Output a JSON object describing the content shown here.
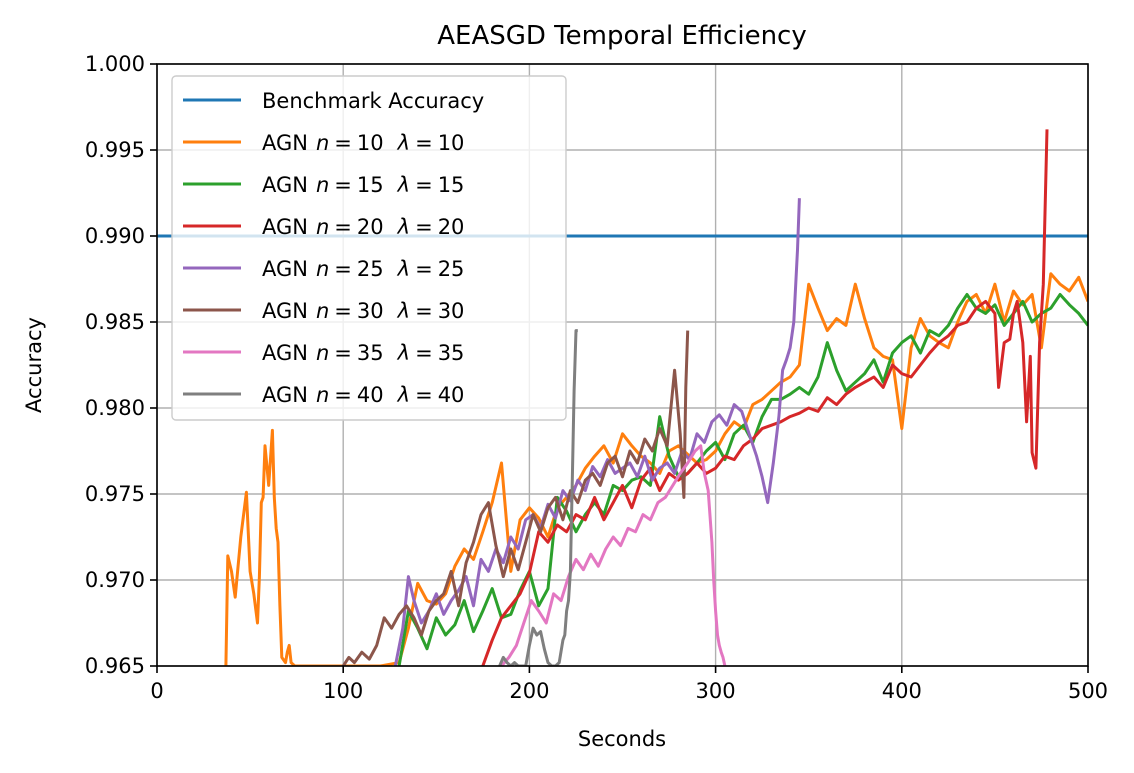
{
  "chart_data": {
    "type": "line",
    "title": "AEASGD Temporal Efficiency",
    "xlabel": "Seconds",
    "ylabel": "Accuracy",
    "xlim": [
      0,
      500
    ],
    "ylim": [
      0.965,
      1.0
    ],
    "xticks": [
      0,
      100,
      200,
      300,
      400,
      500
    ],
    "yticks": [
      0.965,
      0.97,
      0.975,
      0.98,
      0.985,
      0.99,
      0.995,
      1.0
    ],
    "ytick_labels": [
      "0.965",
      "0.970",
      "0.975",
      "0.980",
      "0.985",
      "0.990",
      "0.995",
      "1.000"
    ],
    "grid": true,
    "legend_position": "top-left",
    "series": [
      {
        "name": "Benchmark Accuracy",
        "legend": {
          "prefix": "Benchmark Accuracy",
          "n": "",
          "lambda": ""
        },
        "color": "#1f77b4",
        "x": [
          0,
          500
        ],
        "y": [
          0.99,
          0.99
        ]
      },
      {
        "name": "AGN n=10 λ=10",
        "legend": {
          "prefix": "AGN",
          "n": "10",
          "lambda": "10"
        },
        "color": "#ff7f0e",
        "x": [
          37,
          38,
          40,
          42,
          45,
          48,
          50,
          52,
          54,
          55,
          56,
          57,
          58,
          60,
          62,
          63,
          64,
          65,
          66,
          67,
          69,
          70,
          71,
          72,
          74,
          76,
          78,
          80,
          100,
          120,
          130,
          135,
          140,
          145,
          150,
          155,
          160,
          165,
          170,
          175,
          180,
          185,
          190,
          195,
          200,
          205,
          210,
          215,
          220,
          225,
          230,
          235,
          240,
          245,
          250,
          255,
          260,
          265,
          270,
          275,
          280,
          285,
          290,
          295,
          300,
          305,
          310,
          315,
          320,
          325,
          330,
          335,
          340,
          345,
          350,
          355,
          360,
          365,
          370,
          375,
          380,
          385,
          390,
          395,
          400,
          405,
          410,
          415,
          420,
          425,
          430,
          435,
          440,
          445,
          450,
          455,
          460,
          465,
          470,
          475,
          480,
          485,
          490,
          495,
          500
        ],
        "y": [
          0.965,
          0.9714,
          0.9705,
          0.969,
          0.9725,
          0.9751,
          0.9705,
          0.9692,
          0.9675,
          0.9702,
          0.9745,
          0.9748,
          0.9778,
          0.9755,
          0.9787,
          0.9748,
          0.973,
          0.9722,
          0.9685,
          0.9655,
          0.9652,
          0.9658,
          0.9662,
          0.9652,
          0.965,
          0.965,
          0.965,
          0.965,
          0.965,
          0.965,
          0.9652,
          0.9672,
          0.9698,
          0.9688,
          0.9686,
          0.9692,
          0.9708,
          0.9718,
          0.9712,
          0.9728,
          0.9745,
          0.9768,
          0.9705,
          0.9735,
          0.9742,
          0.9736,
          0.9725,
          0.9742,
          0.9748,
          0.9755,
          0.9765,
          0.9772,
          0.9778,
          0.9768,
          0.9785,
          0.9778,
          0.9772,
          0.9768,
          0.9762,
          0.9775,
          0.9778,
          0.9773,
          0.9768,
          0.977,
          0.9775,
          0.9785,
          0.9792,
          0.9788,
          0.9802,
          0.9805,
          0.981,
          0.9815,
          0.9818,
          0.9825,
          0.9872,
          0.9858,
          0.9845,
          0.9852,
          0.9848,
          0.9872,
          0.9852,
          0.9835,
          0.983,
          0.9828,
          0.9788,
          0.9835,
          0.9852,
          0.9842,
          0.9838,
          0.9835,
          0.985,
          0.9862,
          0.9866,
          0.9855,
          0.9872,
          0.985,
          0.9868,
          0.986,
          0.9866,
          0.9835,
          0.9878,
          0.9872,
          0.9868,
          0.9876,
          0.9862
        ]
      },
      {
        "name": "AGN n=15 λ=15",
        "legend": {
          "prefix": "AGN",
          "n": "15",
          "lambda": "15"
        },
        "color": "#2ca02c",
        "x": [
          130,
          135,
          140,
          145,
          150,
          155,
          160,
          165,
          170,
          175,
          180,
          185,
          190,
          195,
          200,
          205,
          210,
          215,
          220,
          225,
          230,
          235,
          240,
          245,
          250,
          255,
          260,
          265,
          270,
          275,
          280,
          285,
          290,
          295,
          300,
          305,
          310,
          315,
          320,
          325,
          330,
          335,
          340,
          345,
          350,
          355,
          360,
          365,
          370,
          375,
          380,
          385,
          390,
          395,
          400,
          405,
          410,
          415,
          420,
          425,
          430,
          435,
          440,
          445,
          450,
          455,
          460,
          465,
          470,
          475,
          480,
          485,
          490,
          495,
          500
        ],
        "y": [
          0.965,
          0.9682,
          0.9672,
          0.966,
          0.9678,
          0.9668,
          0.9674,
          0.9688,
          0.967,
          0.9682,
          0.9695,
          0.9678,
          0.968,
          0.9694,
          0.9705,
          0.9685,
          0.9695,
          0.9748,
          0.974,
          0.9728,
          0.9738,
          0.9745,
          0.9738,
          0.9755,
          0.9752,
          0.9758,
          0.976,
          0.9755,
          0.9795,
          0.9772,
          0.976,
          0.9762,
          0.9768,
          0.9775,
          0.978,
          0.977,
          0.9785,
          0.979,
          0.978,
          0.9795,
          0.9805,
          0.9805,
          0.9808,
          0.9812,
          0.9808,
          0.9818,
          0.9838,
          0.9822,
          0.981,
          0.9815,
          0.982,
          0.9828,
          0.9815,
          0.9832,
          0.9838,
          0.9842,
          0.9832,
          0.9845,
          0.9842,
          0.9848,
          0.9858,
          0.9866,
          0.9858,
          0.9855,
          0.986,
          0.9848,
          0.9855,
          0.9862,
          0.985,
          0.9855,
          0.9858,
          0.9866,
          0.986,
          0.9855,
          0.9848
        ]
      },
      {
        "name": "AGN n=20 λ=20",
        "legend": {
          "prefix": "AGN",
          "n": "20",
          "lambda": "20"
        },
        "color": "#d62728",
        "x": [
          175,
          180,
          185,
          190,
          195,
          200,
          205,
          210,
          215,
          220,
          225,
          230,
          235,
          240,
          245,
          250,
          255,
          260,
          265,
          270,
          275,
          280,
          285,
          290,
          295,
          300,
          305,
          310,
          315,
          320,
          325,
          330,
          335,
          340,
          345,
          350,
          355,
          360,
          365,
          370,
          375,
          380,
          385,
          390,
          395,
          400,
          405,
          410,
          415,
          420,
          425,
          430,
          435,
          440,
          445,
          450,
          452,
          455,
          458,
          460,
          462,
          465,
          467,
          469,
          470,
          472,
          474,
          476,
          478
        ],
        "y": [
          0.965,
          0.9665,
          0.9678,
          0.9685,
          0.9692,
          0.9704,
          0.9728,
          0.9722,
          0.9732,
          0.9728,
          0.9738,
          0.9735,
          0.9748,
          0.9735,
          0.9745,
          0.9755,
          0.9742,
          0.9758,
          0.9765,
          0.9752,
          0.9762,
          0.9758,
          0.9762,
          0.9768,
          0.9762,
          0.9765,
          0.9772,
          0.977,
          0.9778,
          0.9782,
          0.9788,
          0.979,
          0.9792,
          0.9795,
          0.9797,
          0.98,
          0.9798,
          0.9806,
          0.9802,
          0.9808,
          0.9812,
          0.9815,
          0.9818,
          0.9812,
          0.9825,
          0.982,
          0.9818,
          0.9825,
          0.9832,
          0.9838,
          0.9842,
          0.9848,
          0.985,
          0.9858,
          0.9862,
          0.9855,
          0.9812,
          0.9838,
          0.984,
          0.9855,
          0.9862,
          0.9838,
          0.9792,
          0.983,
          0.9774,
          0.9765,
          0.9838,
          0.9872,
          0.9962
        ]
      },
      {
        "name": "AGN n=25 λ=25",
        "legend": {
          "prefix": "AGN",
          "n": "25",
          "lambda": "25"
        },
        "color": "#9467bd",
        "x": [
          128,
          132,
          135,
          138,
          142,
          146,
          150,
          154,
          158,
          162,
          166,
          170,
          174,
          178,
          182,
          186,
          190,
          194,
          198,
          202,
          206,
          210,
          214,
          218,
          222,
          226,
          230,
          234,
          238,
          242,
          246,
          250,
          254,
          258,
          262,
          266,
          270,
          274,
          278,
          282,
          286,
          290,
          294,
          298,
          302,
          306,
          310,
          314,
          318,
          322,
          325,
          328,
          331,
          334,
          336,
          338,
          340,
          342,
          344,
          345
        ],
        "y": [
          0.965,
          0.9672,
          0.9702,
          0.9688,
          0.9675,
          0.9682,
          0.9692,
          0.968,
          0.9688,
          0.9694,
          0.9702,
          0.9685,
          0.9712,
          0.9705,
          0.9718,
          0.971,
          0.9725,
          0.9718,
          0.9735,
          0.9738,
          0.973,
          0.9744,
          0.9736,
          0.9752,
          0.9746,
          0.9758,
          0.9752,
          0.9766,
          0.976,
          0.977,
          0.9762,
          0.9765,
          0.9768,
          0.976,
          0.9772,
          0.9758,
          0.9765,
          0.9768,
          0.9762,
          0.9775,
          0.977,
          0.9785,
          0.978,
          0.9792,
          0.9796,
          0.979,
          0.9802,
          0.9798,
          0.9785,
          0.9772,
          0.976,
          0.9745,
          0.9768,
          0.9795,
          0.9822,
          0.9828,
          0.9835,
          0.985,
          0.9892,
          0.9922
        ]
      },
      {
        "name": "AGN n=30 λ=30",
        "legend": {
          "prefix": "AGN",
          "n": "30",
          "lambda": "30"
        },
        "color": "#8c564b",
        "x": [
          100,
          103,
          106,
          110,
          114,
          118,
          122,
          126,
          130,
          134,
          138,
          142,
          146,
          150,
          154,
          158,
          162,
          166,
          170,
          174,
          178,
          182,
          186,
          190,
          194,
          198,
          202,
          206,
          210,
          214,
          218,
          222,
          226,
          230,
          234,
          238,
          242,
          246,
          250,
          254,
          258,
          262,
          266,
          270,
          274,
          278,
          281,
          283,
          284,
          285
        ],
        "y": [
          0.965,
          0.9655,
          0.9652,
          0.9658,
          0.9654,
          0.9662,
          0.9678,
          0.9672,
          0.968,
          0.9685,
          0.9678,
          0.9668,
          0.9682,
          0.9688,
          0.9692,
          0.9705,
          0.9685,
          0.971,
          0.9722,
          0.9738,
          0.9745,
          0.972,
          0.9702,
          0.9718,
          0.9706,
          0.9722,
          0.9738,
          0.9728,
          0.9742,
          0.9748,
          0.9735,
          0.9752,
          0.9745,
          0.9758,
          0.9762,
          0.9755,
          0.9768,
          0.9772,
          0.976,
          0.9775,
          0.9768,
          0.9782,
          0.9775,
          0.9788,
          0.9778,
          0.9822,
          0.9785,
          0.9748,
          0.9812,
          0.9845
        ]
      },
      {
        "name": "AGN n=35 λ=35",
        "legend": {
          "prefix": "AGN",
          "n": "35",
          "lambda": "35"
        },
        "color": "#e377c2",
        "x": [
          185,
          189,
          193,
          197,
          201,
          205,
          209,
          213,
          217,
          221,
          225,
          229,
          233,
          237,
          241,
          245,
          249,
          253,
          257,
          261,
          265,
          269,
          273,
          277,
          281,
          285,
          289,
          292,
          294,
          296,
          298,
          299,
          300,
          301,
          302,
          303,
          304,
          305
        ],
        "y": [
          0.965,
          0.9655,
          0.9662,
          0.9675,
          0.9688,
          0.9682,
          0.9675,
          0.9692,
          0.9688,
          0.9702,
          0.9712,
          0.9706,
          0.9715,
          0.9708,
          0.9718,
          0.9725,
          0.972,
          0.973,
          0.9728,
          0.9738,
          0.9735,
          0.9745,
          0.9748,
          0.9755,
          0.9762,
          0.9768,
          0.9775,
          0.9778,
          0.9762,
          0.9752,
          0.9722,
          0.97,
          0.9682,
          0.9668,
          0.9662,
          0.9658,
          0.9655,
          0.965
        ]
      },
      {
        "name": "AGN n=40 λ=40",
        "legend": {
          "prefix": "AGN",
          "n": "40",
          "lambda": "40"
        },
        "color": "#7f7f7f",
        "x": [
          184,
          186,
          188,
          190,
          192,
          194,
          196,
          198,
          200,
          202,
          204,
          206,
          208,
          210,
          212,
          214,
          216,
          218,
          219,
          220,
          221,
          222,
          223,
          224,
          225,
          226
        ],
        "y": [
          0.965,
          0.9655,
          0.9652,
          0.965,
          0.9652,
          0.965,
          0.965,
          0.965,
          0.9662,
          0.9672,
          0.9668,
          0.967,
          0.966,
          0.9652,
          0.965,
          0.965,
          0.9652,
          0.9665,
          0.9668,
          0.9682,
          0.9688,
          0.9705,
          0.9755,
          0.981,
          0.9845,
          0.9845
        ]
      }
    ]
  }
}
